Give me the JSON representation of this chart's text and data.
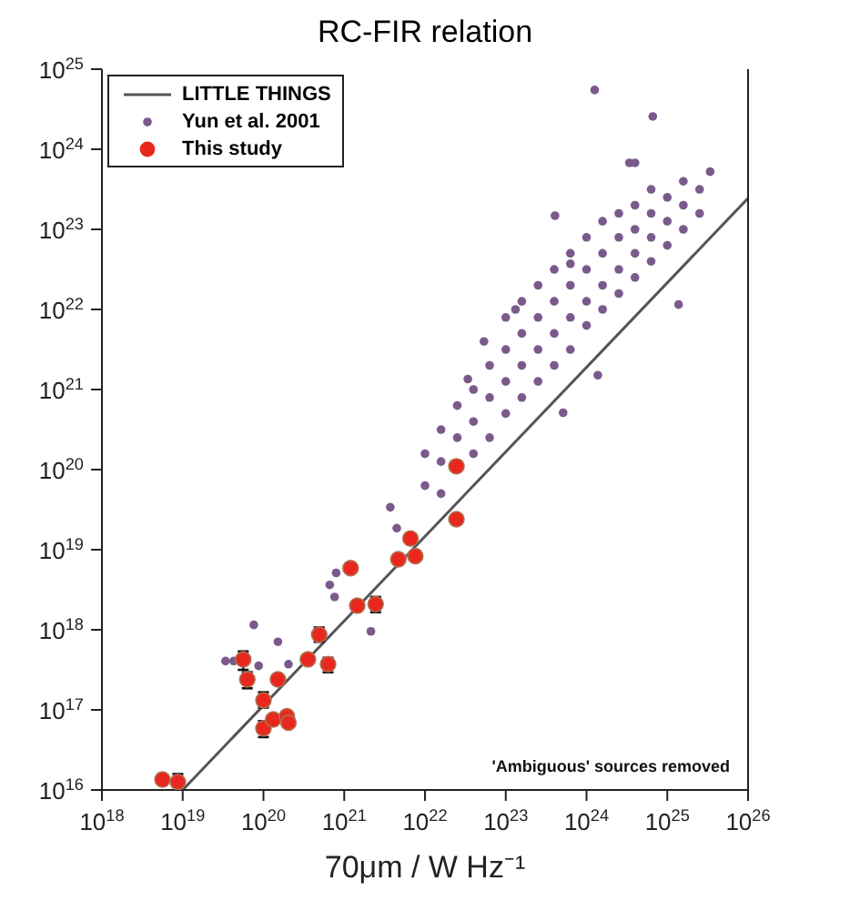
{
  "chart_data": {
    "type": "scatter",
    "title": "RC-FIR relation",
    "xlabel": "70μm / W Hz⁻¹",
    "log": "xy",
    "grid": false,
    "legend": "top left",
    "xlim": [
      1e+18,
      1e+26
    ],
    "xticks": [
      {
        "value": 1e+18,
        "label": "10$^{18}$"
      },
      {
        "value": 1e+19,
        "label": "10$^{19}$"
      },
      {
        "value": 1e+20,
        "label": "10$^{20}$"
      },
      {
        "value": 1e+21,
        "label": "10$^{21}$"
      },
      {
        "value": 1e+22,
        "label": "10$^{22}$"
      },
      {
        "value": 1e+23,
        "label": "10$^{23}$"
      },
      {
        "value": 1e+24,
        "label": "10$^{24}$"
      },
      {
        "value": 1e+25,
        "label": "10$^{25}$"
      },
      {
        "value": 1e+26,
        "label": "10$^{26}$"
      }
    ],
    "ylim": [
      1e+16,
      1e+25
    ],
    "yticks": [
      {
        "value": 1e+16,
        "label": "10$^{16}$"
      },
      {
        "value": 1e+17,
        "label": "10$^{17}$"
      },
      {
        "value": 1e+18,
        "label": "10$^{18}$"
      },
      {
        "value": 1e+19,
        "label": "10$^{19}$"
      },
      {
        "value": 1e+20,
        "label": "10$^{20}$"
      },
      {
        "value": 1e+21,
        "label": "10$^{21}$"
      },
      {
        "value": 1e+22,
        "label": "10$^{22}$"
      },
      {
        "value": 1e+23,
        "label": "10$^{23}$"
      },
      {
        "value": 1e+24,
        "label": "10$^{24}$"
      },
      {
        "value": 1e+25,
        "label": "10$^{25}$"
      }
    ],
    "annotations": [
      "'Ambiguous' sources removed"
    ],
    "series": [
      {
        "name": "LITTLE THINGS",
        "type": "line",
        "color": "#555555",
        "x": [
          1e+19,
          1e+26
        ],
        "values": [
          1e+16,
          2.45e+23
        ]
      },
      {
        "name": "Yun et al. 2001",
        "type": "scatter",
        "color": "#7a5a8c",
        "x": [
          3.39e+19,
          4.27e+19,
          7.59e+19,
          8.71e+19,
          1.51e+20,
          2.04e+20,
          6.61e+20,
          7.94e+20,
          7.59e+20,
          2.14e+21,
          3.72e+21,
          4.47e+21,
          1e+22,
          1e+22,
          1.58e+22,
          1.58e+22,
          1.58e+22,
          2.51e+22,
          2.51e+22,
          3.98e+22,
          3.98e+22,
          3.98e+22,
          6.31e+22,
          6.31e+22,
          6.31e+22,
          1e+23,
          1e+23,
          1e+23,
          1e+23,
          1.58e+23,
          1.58e+23,
          1.58e+23,
          1.58e+23,
          2.51e+23,
          2.51e+23,
          2.51e+23,
          2.51e+23,
          3.98e+23,
          3.98e+23,
          3.98e+23,
          3.98e+23,
          6.31e+23,
          6.31e+23,
          6.31e+23,
          6.31e+23,
          1e+24,
          1e+24,
          1e+24,
          1e+24,
          1.58e+24,
          1.58e+24,
          1.58e+24,
          1.58e+24,
          2.51e+24,
          2.51e+24,
          2.51e+24,
          2.51e+24,
          3.98e+24,
          3.98e+24,
          3.98e+24,
          3.98e+24,
          6.31e+24,
          6.31e+24,
          6.31e+24,
          6.31e+24,
          1e+25,
          1e+25,
          1e+25,
          1.58e+25,
          1.58e+25,
          1.58e+25,
          2.51e+25,
          2.51e+25,
          3.39e+25,
          1.26e+24,
          6.61e+24,
          3.39e+24,
          3.98e+24,
          4.07e+23,
          3.39e+22,
          5.37e+22,
          1.32e+23,
          6.31e+23,
          1.38e+25,
          1.38e+24,
          5.13e+23
        ],
        "values": [
          4.07e+17,
          4.07e+17,
          1.15e+18,
          3.55e+17,
          7.08e+17,
          3.72e+17,
          3.63e+18,
          5.13e+18,
          2.57e+18,
          9.55e+17,
          3.39e+19,
          1.86e+19,
          6.31e+19,
          1.58e+20,
          5.01e+19,
          1.26e+20,
          3.16e+20,
          2.51e+20,
          6.31e+20,
          1.58e+20,
          3.98e+20,
          1e+21,
          2.51e+20,
          7.94e+20,
          2e+21,
          5.01e+20,
          1.26e+21,
          3.16e+21,
          7.94e+21,
          7.94e+20,
          2e+21,
          5.01e+21,
          1.26e+22,
          1.26e+21,
          3.16e+21,
          7.94e+21,
          2e+22,
          2e+21,
          5.01e+21,
          1.26e+22,
          3.16e+22,
          3.16e+21,
          7.94e+21,
          2e+22,
          5.01e+22,
          6.31e+21,
          1.26e+22,
          3.16e+22,
          7.94e+22,
          1e+22,
          2e+22,
          5.01e+22,
          1.26e+23,
          1.58e+22,
          3.16e+22,
          7.94e+22,
          1.58e+23,
          2.51e+22,
          5.01e+22,
          1e+23,
          2e+23,
          3.98e+22,
          7.94e+22,
          1.58e+23,
          3.16e+23,
          6.31e+22,
          1.26e+23,
          2.51e+23,
          1e+23,
          2e+23,
          3.98e+23,
          1.58e+23,
          3.16e+23,
          5.25e+23,
          5.5e+24,
          2.57e+24,
          6.76e+23,
          6.76e+23,
          1.48e+23,
          1.35e+21,
          3.98e+21,
          1e+22,
          3.72e+22,
          1.15e+22,
          1.51e+21,
          5.13e+20
        ]
      },
      {
        "name": "This study",
        "type": "scatter",
        "color": "#e8281e",
        "x": [
          5.62e+18,
          8.71e+18,
          5.62e+19,
          6.31e+19,
          1e+20,
          1e+20,
          1.32e+20,
          1.95e+20,
          2.04e+20,
          1.51e+20,
          3.55e+20,
          4.9e+20,
          6.31e+20,
          1.2e+21,
          1.45e+21,
          2.45e+21,
          4.68e+21,
          7.59e+21,
          6.61e+21,
          2.45e+22,
          2.45e+22
        ],
        "values": [
          1.35e+16,
          1.26e+16,
          4.27e+17,
          2.4e+17,
          1.32e+17,
          5.89e+16,
          7.59e+16,
          8.32e+16,
          6.92e+16,
          2.4e+17,
          4.27e+17,
          8.71e+17,
          3.72e+17,
          5.89e+18,
          2e+18,
          2.09e+18,
          7.59e+18,
          8.32e+18,
          1.38e+19,
          1.1e+20,
          2.4e+19
        ],
        "errors": [
          null,
          [
            1.12e+16,
            1.58e+16
          ],
          [
            3.16e+17,
            5.37e+17
          ],
          [
            1.86e+17,
            2.95e+17
          ],
          [
            1.07e+17,
            1.66e+17
          ],
          [
            4.57e+16,
            7.24e+16
          ],
          null,
          null,
          null,
          null,
          null,
          [
            7.08e+17,
            1.07e+18
          ],
          [
            2.95e+17,
            4.47e+17
          ],
          null,
          null,
          [
            1.66e+18,
            2.57e+18
          ],
          null,
          null,
          null,
          null,
          null
        ]
      }
    ]
  }
}
